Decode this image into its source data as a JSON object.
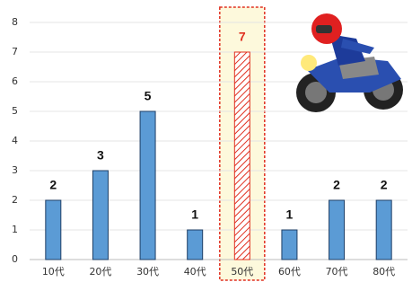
{
  "chart_data": {
    "type": "bar",
    "categories": [
      "10代",
      "20代",
      "30代",
      "40代",
      "50代",
      "60代",
      "70代",
      "80代"
    ],
    "values": [
      2,
      3,
      5,
      1,
      7,
      1,
      2,
      2
    ],
    "color": "#5b9bd5",
    "highlight": 4,
    "highlight_color": "#e03020",
    "ylim": [
      0,
      8
    ],
    "yticks": [
      0,
      1,
      2,
      3,
      4,
      5,
      6,
      7,
      8
    ],
    "grid": true
  }
}
